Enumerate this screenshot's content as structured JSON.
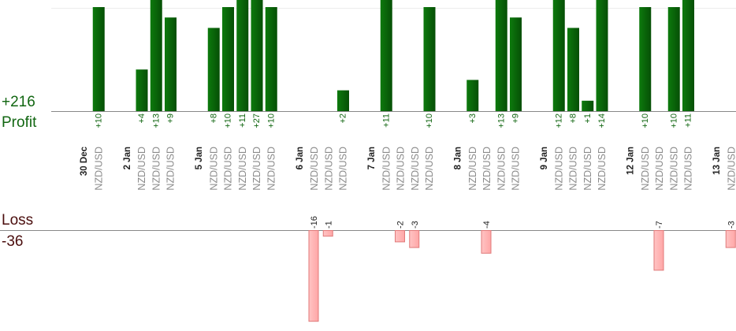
{
  "summary": {
    "profit_total": "+216",
    "profit_label": "Profit",
    "loss_label": "Loss",
    "loss_total": "-36"
  },
  "colors": {
    "profit_bar": "#0a6a0a",
    "profit_text": "#116611",
    "loss_fill": "#ffb3b3",
    "loss_stroke": "#e07a7a",
    "date_text": "#222222",
    "pair_text": "#8a8a8a"
  },
  "chart_data": {
    "type": "bar",
    "ylim": [
      -16,
      13
    ],
    "columns": [
      {
        "type": "date",
        "label": "30 Dec"
      },
      {
        "type": "trade",
        "pair": "NZD/USD",
        "value": 10,
        "label": "+10"
      },
      {
        "type": "gap"
      },
      {
        "type": "date",
        "label": "2 Jan"
      },
      {
        "type": "trade",
        "pair": "NZD/USD",
        "value": 4,
        "label": "+4"
      },
      {
        "type": "trade",
        "pair": "NZD/USD",
        "value": 13,
        "label": "+13"
      },
      {
        "type": "trade",
        "pair": "NZD/USD",
        "value": 9,
        "label": "+9"
      },
      {
        "type": "gap"
      },
      {
        "type": "date",
        "label": "5 Jan"
      },
      {
        "type": "trade",
        "pair": "NZD/USD",
        "value": 8,
        "label": "+8"
      },
      {
        "type": "trade",
        "pair": "NZD/USD",
        "value": 10,
        "label": "+10"
      },
      {
        "type": "trade",
        "pair": "NZD/USD",
        "value": 11,
        "label": "+11"
      },
      {
        "type": "trade",
        "pair": "NZD/USD",
        "value": 27,
        "label": "+27"
      },
      {
        "type": "trade",
        "pair": "NZD/USD",
        "value": 10,
        "label": "+10"
      },
      {
        "type": "gap"
      },
      {
        "type": "date",
        "label": "6 Jan"
      },
      {
        "type": "trade",
        "pair": "NZD/USD",
        "value": -16,
        "label": "-16"
      },
      {
        "type": "trade",
        "pair": "NZD/USD",
        "value": -1,
        "label": "-1"
      },
      {
        "type": "trade",
        "pair": "NZD/USD",
        "value": 2,
        "label": "+2"
      },
      {
        "type": "gap"
      },
      {
        "type": "date",
        "label": "7 Jan"
      },
      {
        "type": "trade",
        "pair": "NZD/USD",
        "value": 11,
        "label": "+11"
      },
      {
        "type": "trade",
        "pair": "NZD/USD",
        "value": -2,
        "label": "-2"
      },
      {
        "type": "trade",
        "pair": "NZD/USD",
        "value": -3,
        "label": "-3"
      },
      {
        "type": "trade",
        "pair": "NZD/USD",
        "value": 10,
        "label": "+10"
      },
      {
        "type": "gap"
      },
      {
        "type": "date",
        "label": "8 Jan"
      },
      {
        "type": "trade",
        "pair": "NZD/USD",
        "value": 3,
        "label": "+3"
      },
      {
        "type": "trade",
        "pair": "NZD/USD",
        "value": -4,
        "label": "-4"
      },
      {
        "type": "trade",
        "pair": "NZD/USD",
        "value": 13,
        "label": "+13"
      },
      {
        "type": "trade",
        "pair": "NZD/USD",
        "value": 9,
        "label": "+9"
      },
      {
        "type": "gap"
      },
      {
        "type": "date",
        "label": "9 Jan"
      },
      {
        "type": "trade",
        "pair": "NZD/USD",
        "value": 12,
        "label": "+12"
      },
      {
        "type": "trade",
        "pair": "NZD/USD",
        "value": 8,
        "label": "+8"
      },
      {
        "type": "trade",
        "pair": "NZD/USD",
        "value": 1,
        "label": "+1"
      },
      {
        "type": "trade",
        "pair": "NZD/USD",
        "value": 14,
        "label": "+14"
      },
      {
        "type": "gap"
      },
      {
        "type": "date",
        "label": "12 Jan"
      },
      {
        "type": "trade",
        "pair": "NZD/USD",
        "value": 10,
        "label": "+10"
      },
      {
        "type": "trade",
        "pair": "NZD/USD",
        "value": -7,
        "label": "-7"
      },
      {
        "type": "trade",
        "pair": "NZD/USD",
        "value": 10,
        "label": "+10"
      },
      {
        "type": "trade",
        "pair": "NZD/USD",
        "value": 11,
        "label": "+11"
      },
      {
        "type": "gap"
      },
      {
        "type": "date",
        "label": "13 Jan"
      },
      {
        "type": "trade",
        "pair": "NZD/USD",
        "value": -3,
        "label": "-3"
      }
    ]
  }
}
